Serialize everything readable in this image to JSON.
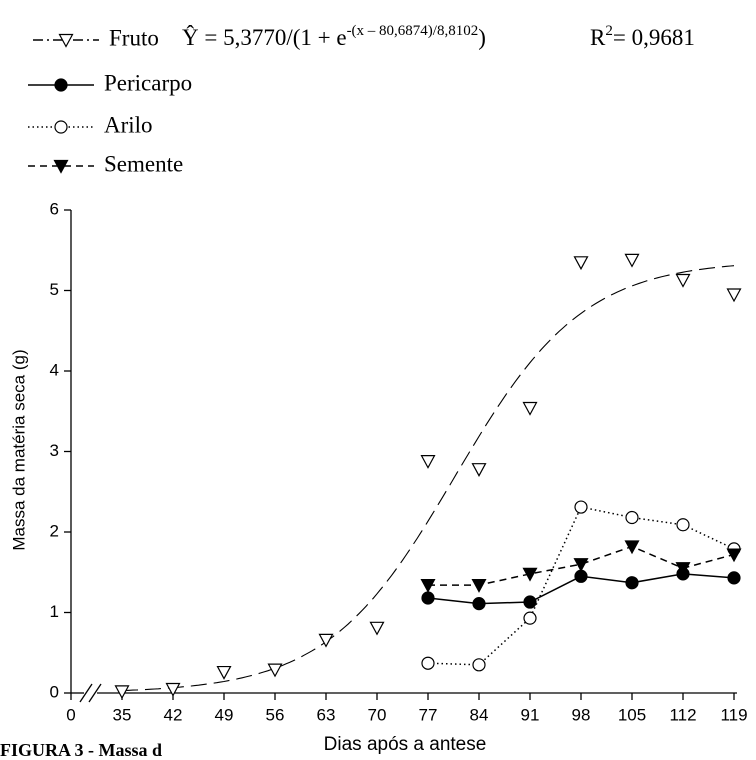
{
  "chart_data": {
    "type": "line",
    "x_label": "Dias após a antese",
    "y_label": "Massa da matéria seca (g)",
    "caption": "FIGURA 3 - Massa d",
    "x": [
      35,
      42,
      49,
      56,
      63,
      70,
      77,
      84,
      91,
      98,
      105,
      112,
      119
    ],
    "xticks": [
      0,
      35,
      42,
      49,
      56,
      63,
      70,
      77,
      84,
      91,
      98,
      105,
      112,
      119
    ],
    "ylim": [
      0,
      6
    ],
    "yticks": [
      0,
      1,
      2,
      3,
      4,
      5,
      6
    ],
    "fit": {
      "a": 5.377,
      "x0": 80.6874,
      "b": 8.8102
    },
    "equation": {
      "prefix": "Ŷ = 5,3770/(1 + e",
      "exponent": "-(x – 80,6874)/8,8102",
      "suffix": ")",
      "r2": "R",
      "r2_power": "2",
      "r2_value": "= 0,9681"
    },
    "series": [
      {
        "name": "Fruto",
        "color": "#000000",
        "marker": "triangle-open",
        "line": "dashdot",
        "values": [
          0.02,
          0.05,
          0.26,
          0.29,
          0.66,
          0.81,
          2.88,
          2.78,
          3.54,
          5.35,
          5.38,
          5.13,
          4.95
        ]
      },
      {
        "name": "Pericarpo",
        "color": "#000000",
        "marker": "circle-filled",
        "line": "solid",
        "values": [
          null,
          null,
          null,
          null,
          null,
          null,
          1.18,
          1.11,
          1.13,
          1.45,
          1.37,
          1.48,
          1.43
        ]
      },
      {
        "name": "Arilo",
        "color": "#000000",
        "marker": "circle-open",
        "line": "dotted",
        "values": [
          null,
          null,
          null,
          null,
          null,
          null,
          0.37,
          0.35,
          0.93,
          2.31,
          2.18,
          2.09,
          1.79
        ]
      },
      {
        "name": "Semente",
        "color": "#000000",
        "marker": "triangle-filled",
        "line": "dashed",
        "values": [
          null,
          null,
          null,
          null,
          null,
          null,
          1.34,
          1.34,
          1.48,
          1.6,
          1.82,
          1.55,
          1.72
        ]
      }
    ]
  }
}
